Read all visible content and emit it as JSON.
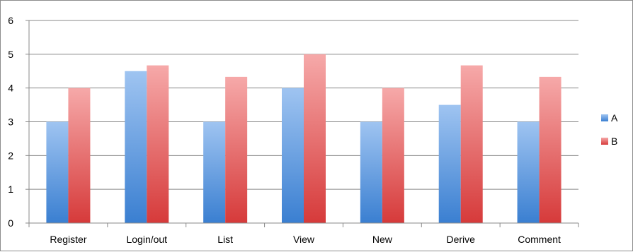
{
  "chart_data": {
    "type": "bar",
    "title": "",
    "xlabel": "",
    "ylabel": "",
    "categories": [
      "Register",
      "Login/out",
      "List",
      "View",
      "New",
      "Derive",
      "Comment"
    ],
    "series": [
      {
        "name": "A",
        "values": [
          3,
          4.5,
          3,
          4,
          3,
          3.5,
          3
        ],
        "color_top": "#9fc4f1",
        "color_bottom": "#3a7fd1"
      },
      {
        "name": "B",
        "values": [
          4,
          4.67,
          4.33,
          5,
          4,
          4.67,
          4.33
        ],
        "color_top": "#f6a9a9",
        "color_bottom": "#d63a3a"
      }
    ],
    "ylim": [
      0,
      6
    ],
    "yticks": [
      0,
      1,
      2,
      3,
      4,
      5,
      6
    ],
    "grid": true,
    "legend_position": "right"
  }
}
